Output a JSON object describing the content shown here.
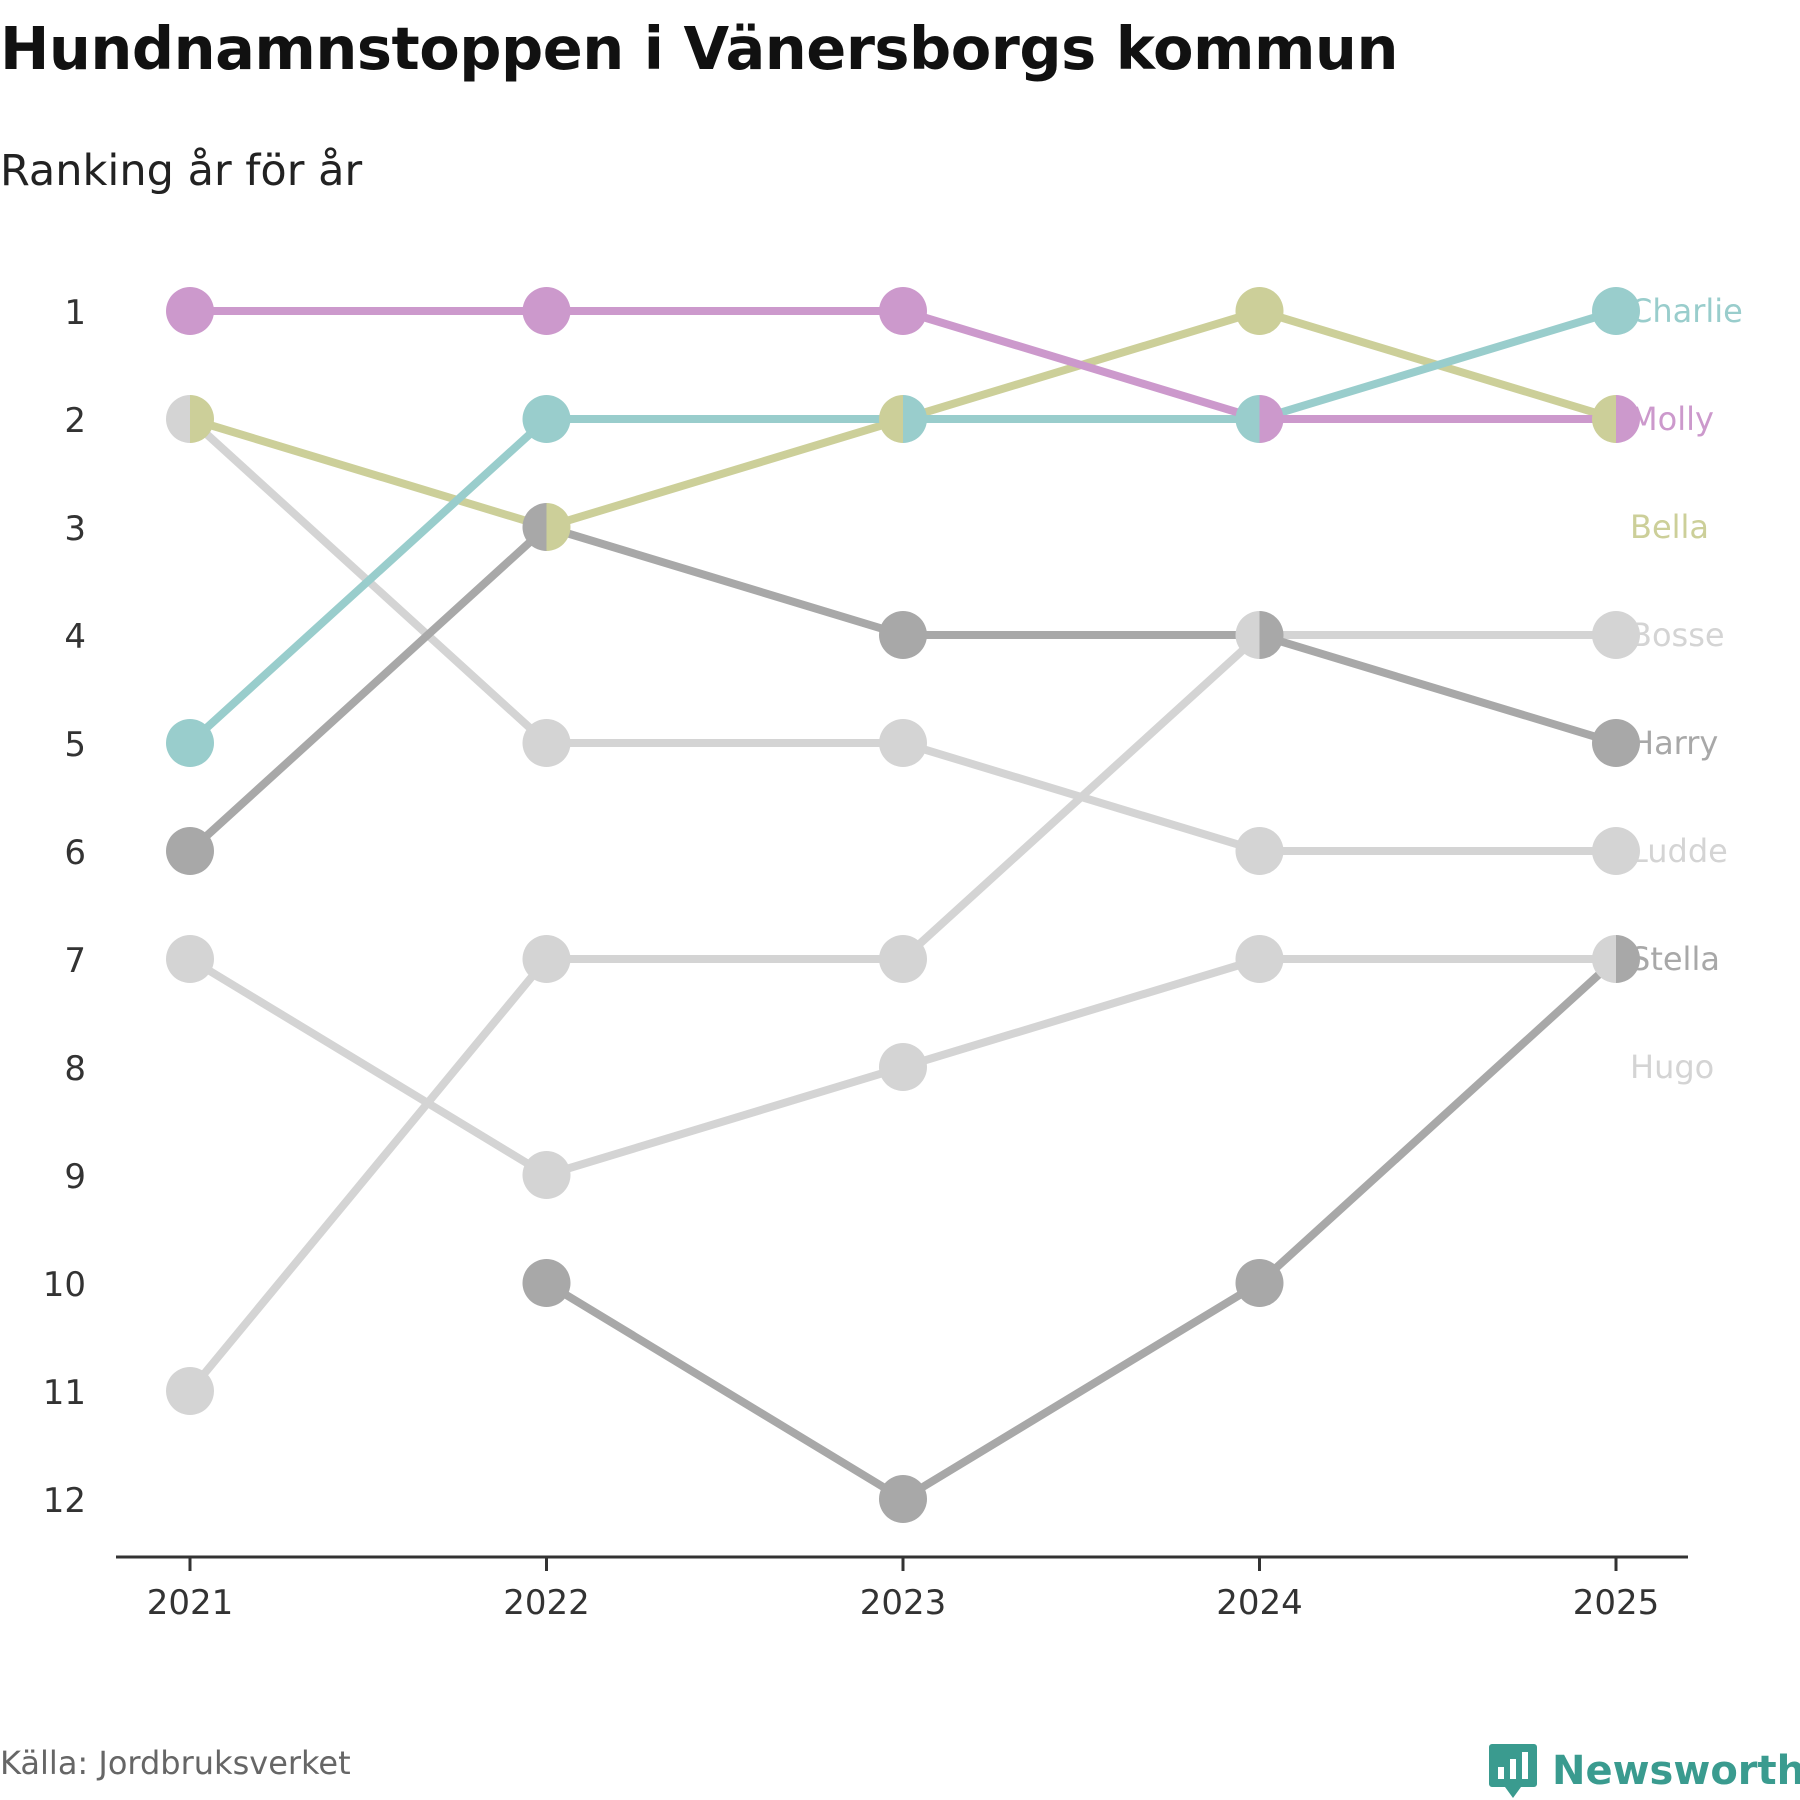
{
  "title": "Hundnamnstoppen i Vänersborgs kommun",
  "subtitle": "Ranking år för år",
  "source": "Källa: Jordbruksverket",
  "brand": {
    "name": "Newsworthy",
    "icon": "newsworthy-logo-icon",
    "color": "#3a9b8f"
  },
  "chart_data": {
    "type": "line",
    "title": "Hundnamnstoppen i Vänersborgs kommun",
    "subtitle": "Ranking år för år",
    "xlabel": "",
    "ylabel": "",
    "x": [
      "2021",
      "2022",
      "2023",
      "2024",
      "2025"
    ],
    "y_ticks": [
      "1",
      "2",
      "3",
      "4",
      "5",
      "6",
      "7",
      "8",
      "9",
      "10",
      "11",
      "12"
    ],
    "ylim": [
      1,
      12
    ],
    "y_inverted": true,
    "legend": "direct labels at right end of lines",
    "series": [
      {
        "name": "Hugo",
        "color": "#d4d4d4",
        "values": [
          7,
          9,
          8,
          7,
          7
        ]
      },
      {
        "name": "Ludde",
        "color": "#d4d4d4",
        "values": [
          2,
          5,
          5,
          6,
          6
        ]
      },
      {
        "name": "Bosse",
        "color": "#d4d4d4",
        "values": [
          11,
          7,
          7,
          4,
          4
        ]
      },
      {
        "name": "Stella",
        "color": "#a8a8a8",
        "values": [
          null,
          10,
          12,
          10,
          7
        ]
      },
      {
        "name": "Harry",
        "color": "#a8a8a8",
        "values": [
          6,
          3,
          4,
          4,
          5
        ]
      },
      {
        "name": "Bella",
        "color": "#cccf99",
        "values": [
          2,
          3,
          2,
          1,
          2
        ]
      },
      {
        "name": "Charlie",
        "color": "#99cdcc",
        "values": [
          5,
          2,
          2,
          2,
          1
        ]
      },
      {
        "name": "Molly",
        "color": "#cc99cc",
        "values": [
          1,
          1,
          1,
          2,
          2
        ]
      }
    ],
    "end_labels": [
      {
        "name": "Charlie",
        "color": "#99cdcc"
      },
      {
        "name": "Molly",
        "color": "#cc99cc"
      },
      {
        "name": "Bella",
        "color": "#cccf99"
      },
      {
        "name": "Bosse",
        "color": "#d4d4d4"
      },
      {
        "name": "Harry",
        "color": "#a8a8a8"
      },
      {
        "name": "Ludde",
        "color": "#d4d4d4"
      },
      {
        "name": "Stella",
        "color": "#a8a8a8"
      },
      {
        "name": "Hugo",
        "color": "#d4d4d4"
      }
    ]
  }
}
